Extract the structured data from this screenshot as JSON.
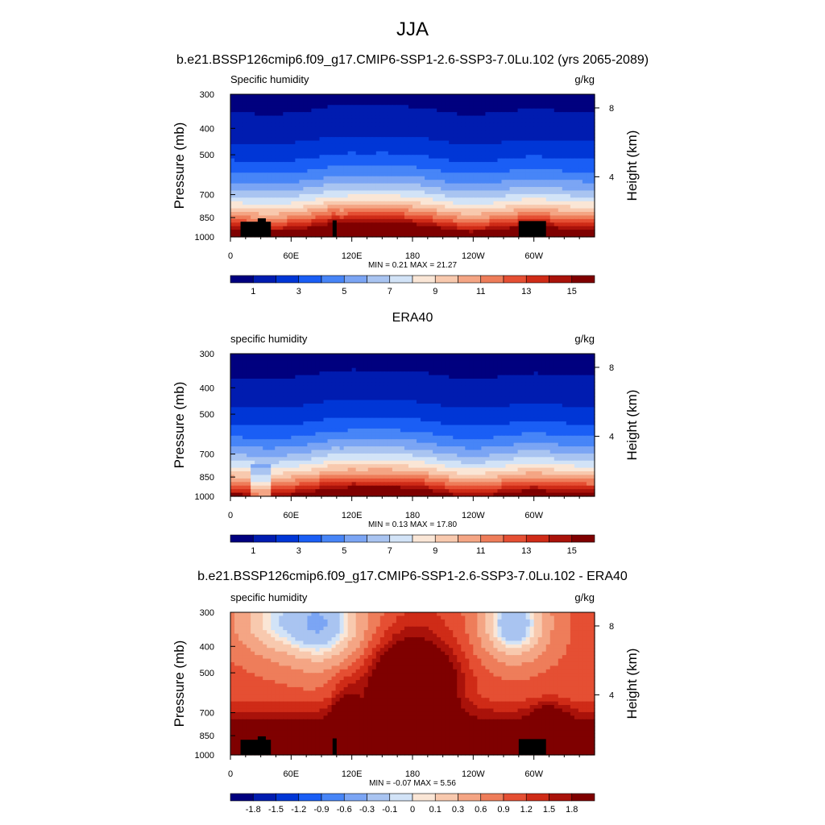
{
  "figure": {
    "main_title": "JJA",
    "model_title": "b.e21.BSSP126cmip6.f09_g17.CMIP6-SSP1-2.6-SSP3-7.0Lu.102 (yrs 2065-2089)"
  },
  "palettes": {
    "blue_red_16": [
      "#00007f",
      "#001cb0",
      "#0036d6",
      "#1a5ef5",
      "#4785f7",
      "#7ba5f4",
      "#a9c4f1",
      "#d2e3f7",
      "#fae6d6",
      "#f8c9ae",
      "#f4a584",
      "#ee7d5a",
      "#e54f33",
      "#cf2b17",
      "#a9120a",
      "#7f0000"
    ]
  },
  "chart_data": [
    {
      "type": "heatmap",
      "id": "panel-model",
      "title": "",
      "left_label": "Specific humidity",
      "right_label": "g/kg",
      "ylabel": "Pressure (mb)",
      "y2label": "Height (km)",
      "y_ticks": [
        300,
        400,
        500,
        700,
        850,
        1000
      ],
      "y2_ticks_km": [
        8,
        4
      ],
      "ylim_mb": [
        300,
        1000
      ],
      "x_ticks_deg": [
        0,
        60,
        120,
        180,
        240,
        300
      ],
      "x_tick_labels": [
        "0",
        "60E",
        "120E",
        "180",
        "120W",
        "60W"
      ],
      "xlim_deg": [
        0,
        360
      ],
      "stats_text": "MIN =   0.21  MAX =  21.27",
      "min": 0.21,
      "max": 21.27,
      "field": "humidity",
      "levels": [
        0,
        1,
        2,
        3,
        4,
        5,
        6,
        7,
        8,
        9,
        10,
        11,
        12,
        13,
        14,
        15
      ],
      "colorbar_labels": [
        "1",
        "3",
        "5",
        "7",
        "9",
        "11",
        "13",
        "15"
      ],
      "topography": true
    },
    {
      "type": "heatmap",
      "id": "panel-obs",
      "title": "ERA40",
      "left_label": "specific humidity",
      "right_label": "g/kg",
      "ylabel": "Pressure (mb)",
      "y2label": "Height (km)",
      "y_ticks": [
        300,
        400,
        500,
        700,
        850,
        1000
      ],
      "y2_ticks_km": [
        8,
        4
      ],
      "ylim_mb": [
        300,
        1000
      ],
      "x_ticks_deg": [
        0,
        60,
        120,
        180,
        240,
        300
      ],
      "x_tick_labels": [
        "0",
        "60E",
        "120E",
        "180",
        "120W",
        "60W"
      ],
      "xlim_deg": [
        0,
        360
      ],
      "stats_text": "MIN =   0.13  MAX =  17.80",
      "min": 0.13,
      "max": 17.8,
      "field": "humidity",
      "levels": [
        0,
        1,
        2,
        3,
        4,
        5,
        6,
        7,
        8,
        9,
        10,
        11,
        12,
        13,
        14,
        15
      ],
      "colorbar_labels": [
        "1",
        "3",
        "5",
        "7",
        "9",
        "11",
        "13",
        "15"
      ],
      "topography": false
    },
    {
      "type": "heatmap",
      "id": "panel-diff",
      "title": "b.e21.BSSP126cmip6.f09_g17.CMIP6-SSP1-2.6-SSP3-7.0Lu.102 - ERA40",
      "left_label": "specific humidity",
      "right_label": "g/kg",
      "ylabel": "Pressure (mb)",
      "y2label": "Height (km)",
      "y_ticks": [
        300,
        400,
        500,
        700,
        850,
        1000
      ],
      "y2_ticks_km": [
        8,
        4
      ],
      "ylim_mb": [
        300,
        1000
      ],
      "x_ticks_deg": [
        0,
        60,
        120,
        180,
        240,
        300
      ],
      "x_tick_labels": [
        "0",
        "60E",
        "120E",
        "180",
        "120W",
        "60W"
      ],
      "xlim_deg": [
        0,
        360
      ],
      "stats_text": "MIN =  -0.07  MAX =   5.56",
      "min": -0.07,
      "max": 5.56,
      "field": "difference",
      "levels": [
        -2.1,
        -1.8,
        -1.5,
        -1.2,
        -0.9,
        -0.6,
        -0.3,
        -0.1,
        0,
        0.1,
        0.3,
        0.6,
        0.9,
        1.2,
        1.5,
        1.8
      ],
      "colorbar_labels": [
        "-1.8",
        "-1.5",
        "-1.2",
        "-0.9",
        "-0.6",
        "-0.3",
        "-0.1",
        "0",
        "0.1",
        "0.3",
        "0.6",
        "0.9",
        "1.2",
        "1.5",
        "1.8"
      ],
      "topography": true
    }
  ]
}
